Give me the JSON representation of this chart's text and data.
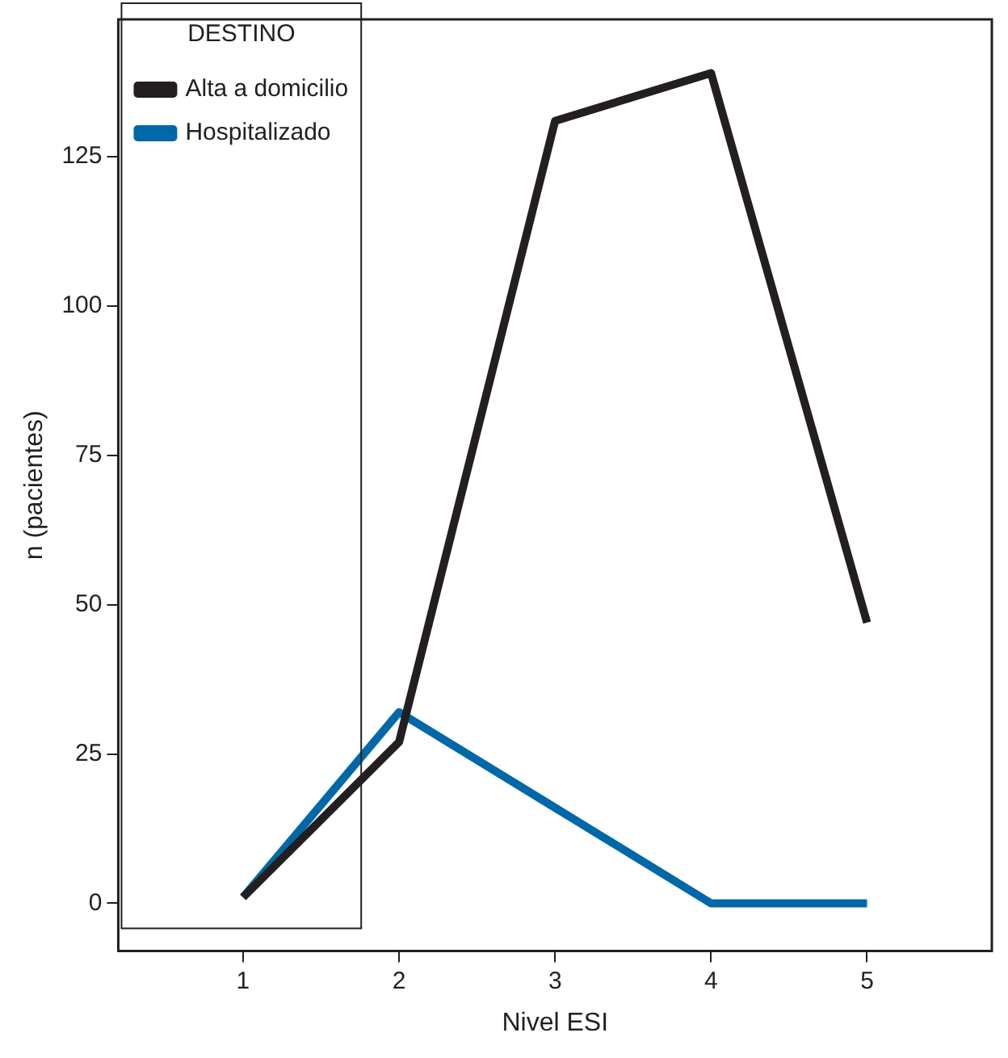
{
  "chart_data": {
    "type": "line",
    "xlabel": "Nivel ESI",
    "ylabel": "n (pacientes)",
    "legend_title": "DESTINO",
    "x": [
      1,
      2,
      3,
      4,
      5
    ],
    "series": [
      {
        "name": "Alta a domicilio",
        "color": "#231f20",
        "values": [
          1,
          27,
          131,
          139,
          47
        ]
      },
      {
        "name": "Hospitalizado",
        "color": "#0068a8",
        "values": [
          1,
          32,
          16,
          0,
          0
        ]
      }
    ],
    "xlim": [
      0.2,
      5.8
    ],
    "xticks": [
      1,
      2,
      3,
      4,
      5
    ],
    "ylim": [
      -8,
      148
    ],
    "yticks": [
      0,
      25,
      50,
      75,
      100,
      125
    ],
    "grid": false,
    "legend": "top left",
    "marker": "none",
    "line_style": "solid"
  }
}
